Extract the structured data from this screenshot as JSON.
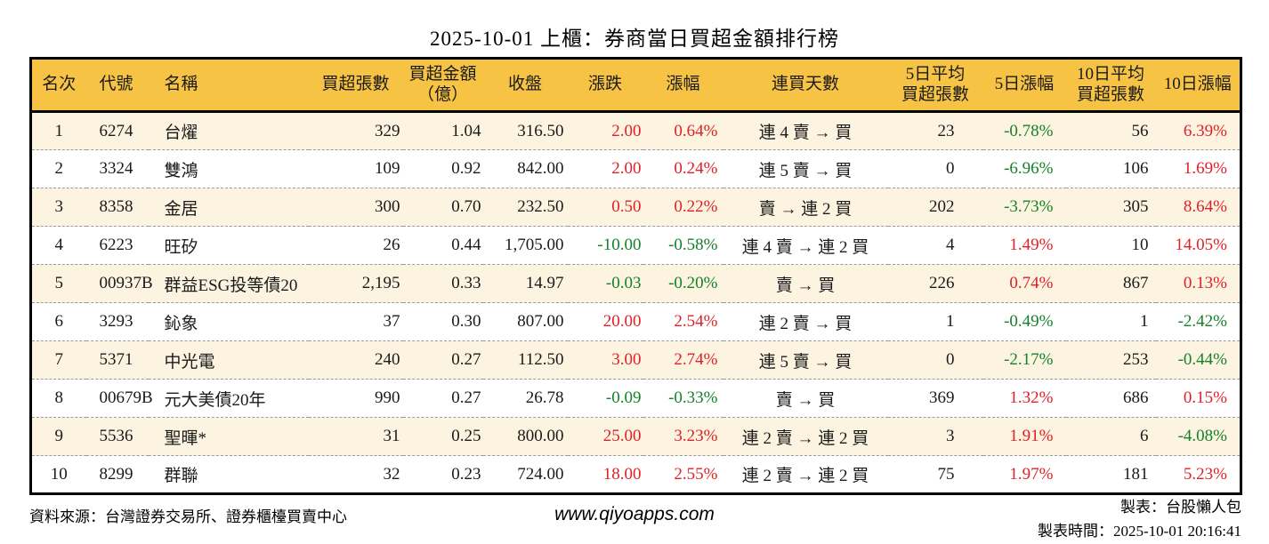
{
  "title": "2025-10-01 上櫃：券商當日買超金額排行榜",
  "colors": {
    "up_red": "#e01f26",
    "down_green": "#148228",
    "header_bg": "#f7c344",
    "row_alt_bg": "#fcf4e0",
    "border": "#000000"
  },
  "table": {
    "headers": [
      "名次",
      "代號",
      "名稱",
      "買超張數",
      "買超金額\n（億）",
      "收盤",
      "漲跌",
      "漲幅",
      "連買天數",
      "5日平均\n買超張數",
      "5日漲幅",
      "10日平均\n買超張數",
      "10日漲幅"
    ],
    "rows": [
      {
        "rank": "1",
        "code": "6274",
        "name": "台燿",
        "volume": "329",
        "amount": "1.04",
        "close": "316.50",
        "change": "2.00",
        "change_pct": "0.64%",
        "streak": "連 4 賣 → 買",
        "avg5": "23",
        "pct5": "-0.78%",
        "avg10": "56",
        "pct10": "6.39%"
      },
      {
        "rank": "2",
        "code": "3324",
        "name": "雙鴻",
        "volume": "109",
        "amount": "0.92",
        "close": "842.00",
        "change": "2.00",
        "change_pct": "0.24%",
        "streak": "連 5 賣 → 買",
        "avg5": "0",
        "pct5": "-6.96%",
        "avg10": "106",
        "pct10": "1.69%"
      },
      {
        "rank": "3",
        "code": "8358",
        "name": "金居",
        "volume": "300",
        "amount": "0.70",
        "close": "232.50",
        "change": "0.50",
        "change_pct": "0.22%",
        "streak": "賣 → 連 2 買",
        "avg5": "202",
        "pct5": "-3.73%",
        "avg10": "305",
        "pct10": "8.64%"
      },
      {
        "rank": "4",
        "code": "6223",
        "name": "旺矽",
        "volume": "26",
        "amount": "0.44",
        "close": "1,705.00",
        "change": "-10.00",
        "change_pct": "-0.58%",
        "streak": "連 4 賣 → 連 2 買",
        "avg5": "4",
        "pct5": "1.49%",
        "avg10": "10",
        "pct10": "14.05%"
      },
      {
        "rank": "5",
        "code": "00937B",
        "name": "群益ESG投等債20",
        "volume": "2,195",
        "amount": "0.33",
        "close": "14.97",
        "change": "-0.03",
        "change_pct": "-0.20%",
        "streak": "賣 → 買",
        "avg5": "226",
        "pct5": "0.74%",
        "avg10": "867",
        "pct10": "0.13%"
      },
      {
        "rank": "6",
        "code": "3293",
        "name": "鈊象",
        "volume": "37",
        "amount": "0.30",
        "close": "807.00",
        "change": "20.00",
        "change_pct": "2.54%",
        "streak": "連 2 賣 → 買",
        "avg5": "1",
        "pct5": "-0.49%",
        "avg10": "1",
        "pct10": "-2.42%"
      },
      {
        "rank": "7",
        "code": "5371",
        "name": "中光電",
        "volume": "240",
        "amount": "0.27",
        "close": "112.50",
        "change": "3.00",
        "change_pct": "2.74%",
        "streak": "連 5 賣 → 買",
        "avg5": "0",
        "pct5": "-2.17%",
        "avg10": "253",
        "pct10": "-0.44%"
      },
      {
        "rank": "8",
        "code": "00679B",
        "name": "元大美債20年",
        "volume": "990",
        "amount": "0.27",
        "close": "26.78",
        "change": "-0.09",
        "change_pct": "-0.33%",
        "streak": "賣 → 買",
        "avg5": "369",
        "pct5": "1.32%",
        "avg10": "686",
        "pct10": "0.15%"
      },
      {
        "rank": "9",
        "code": "5536",
        "name": "聖暉*",
        "volume": "31",
        "amount": "0.25",
        "close": "800.00",
        "change": "25.00",
        "change_pct": "3.23%",
        "streak": "連 2 賣 → 連 2 買",
        "avg5": "3",
        "pct5": "1.91%",
        "avg10": "6",
        "pct10": "-4.08%"
      },
      {
        "rank": "10",
        "code": "8299",
        "name": "群聯",
        "volume": "32",
        "amount": "0.23",
        "close": "724.00",
        "change": "18.00",
        "change_pct": "2.55%",
        "streak": "連 2 賣 → 連 2 買",
        "avg5": "75",
        "pct5": "1.97%",
        "avg10": "181",
        "pct10": "5.23%"
      }
    ]
  },
  "footer": {
    "source": "資料來源：台灣證券交易所、證券櫃檯買賣中心",
    "website": "www.qiyoapps.com",
    "author": "製表：台股懶人包",
    "generated": "製表時間：2025-10-01 20:16:41"
  }
}
